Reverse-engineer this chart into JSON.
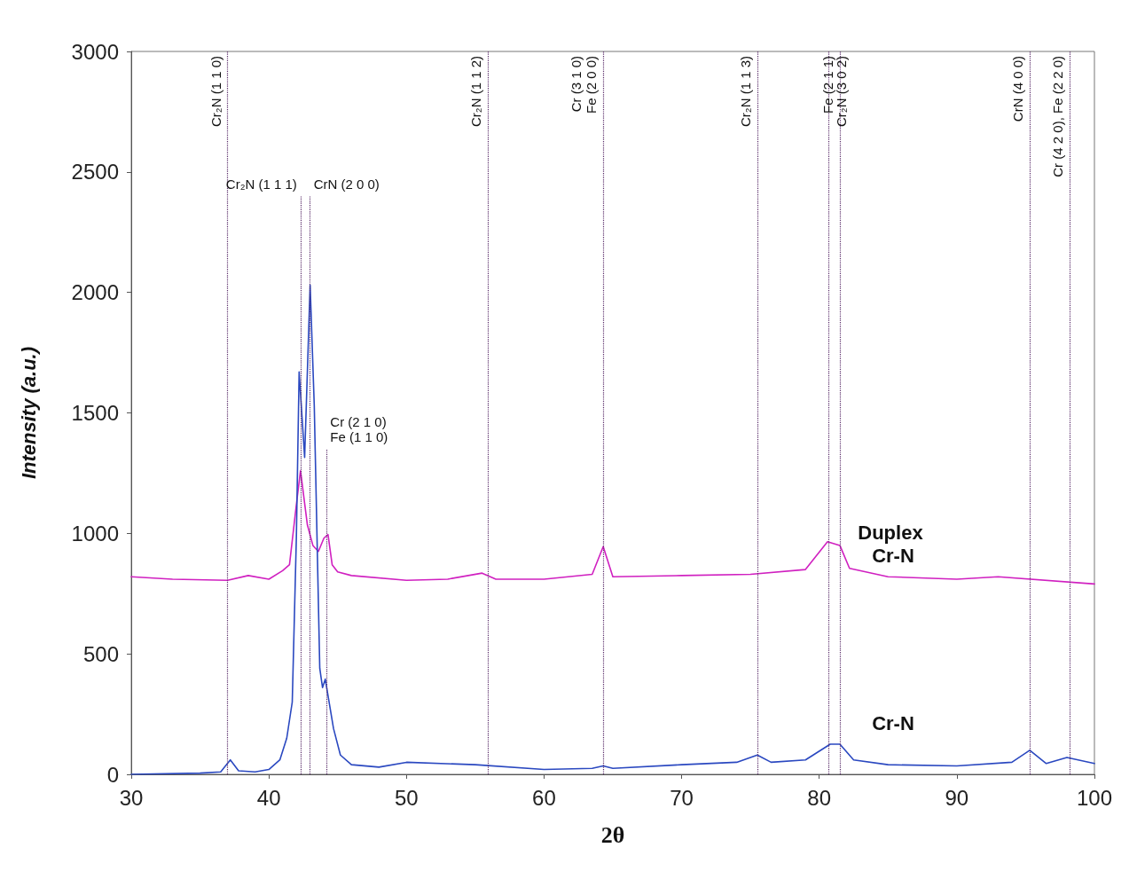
{
  "chart_data": {
    "type": "line",
    "xlabel": "2θ",
    "ylabel": "Intensity (a.u.)",
    "xlim": [
      30,
      100
    ],
    "xticks": [
      30,
      40,
      50,
      60,
      70,
      80,
      90,
      100
    ],
    "ylim": [
      0,
      3000
    ],
    "yticks": [
      0,
      500,
      1000,
      1500,
      2000,
      2500,
      3000
    ],
    "grid": false,
    "legend": false,
    "marker": "none",
    "line_style": "solid",
    "series": [
      {
        "name": "Duplex Cr-N",
        "color": "#d020c0",
        "x": [
          30,
          33,
          37,
          38.5,
          40,
          41,
          41.5,
          42,
          42.3,
          42.8,
          43.2,
          43.6,
          44,
          44.3,
          44.6,
          45,
          46,
          50,
          53,
          55.5,
          56.5,
          60,
          63.5,
          64.3,
          65,
          70,
          75,
          79,
          80.6,
          81.5,
          82.2,
          85,
          90,
          93,
          100
        ],
        "values": [
          820,
          810,
          805,
          825,
          810,
          845,
          870,
          1120,
          1260,
          1035,
          950,
          925,
          980,
          995,
          870,
          840,
          825,
          805,
          810,
          835,
          810,
          810,
          830,
          945,
          820,
          825,
          830,
          850,
          965,
          950,
          855,
          820,
          810,
          820,
          790
        ]
      },
      {
        "name": "Cr-N",
        "color": "#2a48c0",
        "x": [
          30,
          35,
          36.5,
          37.2,
          37.8,
          39,
          40,
          40.8,
          41.3,
          41.7,
          42,
          42.2,
          42.6,
          43,
          43.3,
          43.7,
          43.9,
          44.1,
          44.7,
          45.2,
          46,
          48,
          50,
          55,
          60,
          63.5,
          64.3,
          65,
          70,
          74,
          75.5,
          76.5,
          79,
          80.8,
          81.5,
          82.5,
          85,
          90,
          94,
          95.3,
          96.5,
          98,
          100
        ],
        "values": [
          0,
          5,
          10,
          60,
          15,
          10,
          20,
          60,
          150,
          300,
          985,
          1670,
          1315,
          2030,
          1530,
          440,
          360,
          395,
          190,
          80,
          40,
          30,
          50,
          40,
          20,
          25,
          35,
          25,
          40,
          50,
          80,
          50,
          60,
          125,
          125,
          60,
          40,
          35,
          50,
          100,
          45,
          70,
          45
        ]
      }
    ],
    "ref_lines": [
      {
        "axis": "x",
        "value": 37,
        "label": "Cr₂N (1 1 0)",
        "color": "#5a2d6a",
        "line_style": "dotted"
      },
      {
        "axis": "x",
        "value": 42.3,
        "label": "Cr₂N (1 1 1)",
        "color": "#5a2d6a",
        "line_style": "dotted"
      },
      {
        "axis": "x",
        "value": 43,
        "label": "CrN (2 0 0)",
        "color": "#5a2d6a",
        "line_style": "dotted"
      },
      {
        "axis": "x",
        "value": 44.2,
        "label": "Cr (2 1 0)\nFe (1 1 0)",
        "color": "#5a2d6a",
        "line_style": "dotted"
      },
      {
        "axis": "x",
        "value": 55.9,
        "label": "Cr₂N (1 1 2)",
        "color": "#5a2d6a",
        "line_style": "dotted"
      },
      {
        "axis": "x",
        "value": 64.3,
        "label": "Cr (3 1 0)\nFe (2 0 0)",
        "color": "#5a2d6a",
        "line_style": "dotted"
      },
      {
        "axis": "x",
        "value": 75.5,
        "label": "Cr₂N (1 1 3)",
        "color": "#5a2d6a",
        "line_style": "dotted"
      },
      {
        "axis": "x",
        "value": 80.7,
        "label": "Cr₂N (3 0 2)",
        "color": "#5a2d6a",
        "line_style": "dotted"
      },
      {
        "axis": "x",
        "value": 81.5,
        "label": "Fe (2 1 1)",
        "color": "#5a2d6a",
        "line_style": "dotted"
      },
      {
        "axis": "x",
        "value": 95.3,
        "label": "CrN (4 0 0)",
        "color": "#5a2d6a",
        "line_style": "dotted"
      },
      {
        "axis": "x",
        "value": 98.2,
        "label": "Cr (4 2 0), Fe (2 2 0)",
        "color": "#5a2d6a",
        "line_style": "dotted"
      }
    ]
  }
}
